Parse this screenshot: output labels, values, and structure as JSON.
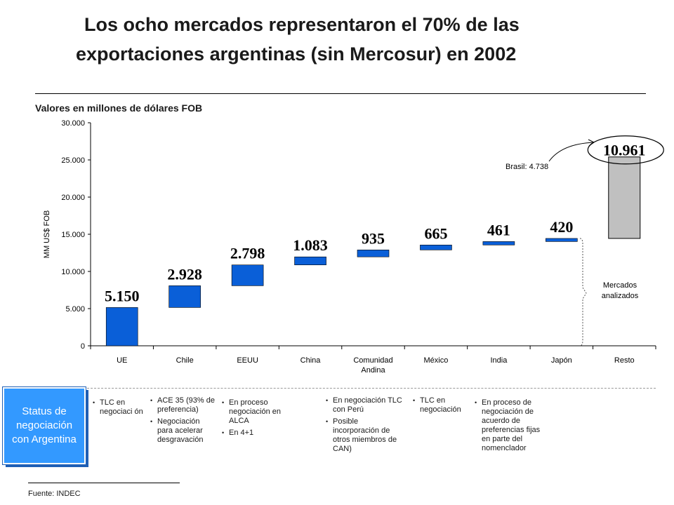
{
  "title_line1": "Los ocho mercados representaron el 70% de las",
  "title_line2": "exportaciones argentinas (sin Mercosur) en 2002",
  "subtitle": "Valores en millones de dólares FOB",
  "chart_data": {
    "type": "bar",
    "subtype": "waterfall",
    "ylabel": "MM US$ FOB",
    "ylim": [
      0,
      30000
    ],
    "yticks": [
      "0",
      "5.000",
      "10.000",
      "15.000",
      "20.000",
      "25.000",
      "30.000"
    ],
    "categories": [
      "UE",
      "Chile",
      "EEUU",
      "China",
      "Comunidad Andina",
      "México",
      "India",
      "Japón",
      "Resto"
    ],
    "category_labels": [
      [
        "UE"
      ],
      [
        "Chile"
      ],
      [
        "EEUU"
      ],
      [
        "China"
      ],
      [
        "Comunidad",
        "Andina"
      ],
      [
        "México"
      ],
      [
        "India"
      ],
      [
        "Japón"
      ],
      [
        "Resto"
      ]
    ],
    "values": [
      5150,
      2928,
      2798,
      1083,
      935,
      665,
      461,
      420,
      10961
    ],
    "value_labels": [
      "5.150",
      "2.928",
      "2.798",
      "1.083",
      "935",
      "665",
      "461",
      "420",
      "10.961"
    ],
    "bar_color": "#0a5fd8",
    "resto_color": "#c0c0c0",
    "annotation_brasil": "Brasil: 4.738",
    "bracket_label": [
      "Mercados",
      "analizados"
    ]
  },
  "status_box": "Status de negociación con Argentina",
  "notes": [
    {
      "items": [
        "TLC en negociaci ón"
      ]
    },
    {
      "items": [
        "ACE 35 (93% de preferencia)",
        "Negociación para acelerar desgravación"
      ]
    },
    {
      "items": [
        "En proceso negociación en ALCA",
        "En 4+1"
      ]
    },
    {
      "items": [
        "En negociación TLC con Perú",
        "Posible incorporación de otros miembros de CAN)"
      ]
    },
    {
      "items": [
        "TLC en negociación"
      ]
    },
    {
      "items": [
        "En proceso de negociación de acuerdo de preferencias fijas en parte del nomenclador"
      ]
    }
  ],
  "source": "Fuente: INDEC"
}
